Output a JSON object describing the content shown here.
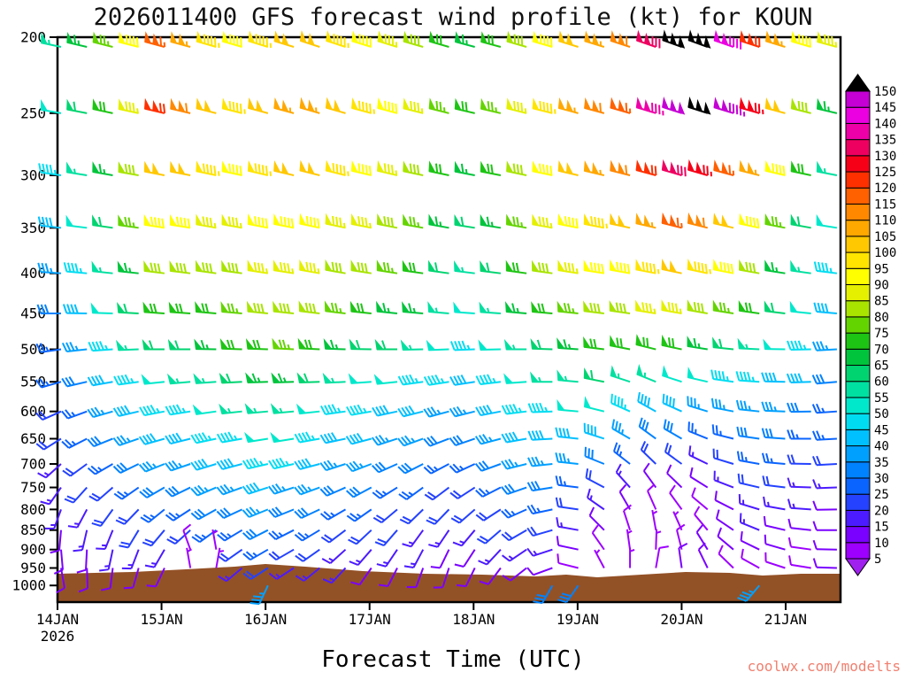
{
  "title": "2026011400 GFS forecast wind profile (kt) for KOUN",
  "xlabel": "Forecast Time (UTC)",
  "watermark": "coolwx.com/modelts",
  "axes": {
    "y_scale": "log-pressure",
    "ylim": [
      200,
      1050
    ],
    "pressure_ticks": [
      200,
      250,
      300,
      350,
      400,
      450,
      500,
      550,
      600,
      650,
      700,
      750,
      800,
      850,
      900,
      950,
      1000
    ],
    "time_ticks": [
      {
        "label": "14JAN",
        "day": 14
      },
      {
        "label": "15JAN",
        "day": 15
      },
      {
        "label": "16JAN",
        "day": 16
      },
      {
        "label": "17JAN",
        "day": 17
      },
      {
        "label": "18JAN",
        "day": 18
      },
      {
        "label": "19JAN",
        "day": 19
      },
      {
        "label": "20JAN",
        "day": 20
      },
      {
        "label": "21JAN",
        "day": 21
      }
    ],
    "year_label": "2026"
  },
  "colorbar": {
    "tick_labels": [
      5,
      10,
      15,
      20,
      25,
      30,
      35,
      40,
      45,
      50,
      55,
      60,
      65,
      70,
      75,
      80,
      85,
      90,
      95,
      100,
      105,
      110,
      115,
      120,
      125,
      130,
      135,
      140,
      145,
      150
    ],
    "colors": [
      "#9d00ff",
      "#7a00ff",
      "#4c1bff",
      "#2442ff",
      "#0a64ff",
      "#0082ff",
      "#00a0ff",
      "#00c0ff",
      "#00ddf2",
      "#00e8cc",
      "#00e0a0",
      "#00d470",
      "#00c43c",
      "#1ec414",
      "#64d400",
      "#a8e400",
      "#e4f000",
      "#ffff00",
      "#ffe400",
      "#ffc800",
      "#ffa800",
      "#ff8800",
      "#ff6000",
      "#ff3000",
      "#f60018",
      "#ee0060",
      "#ee00a8",
      "#ea00e0",
      "#c400d4"
    ],
    "under_color": "#a020f0",
    "over_color": "#000000"
  },
  "terrain": {
    "color": "#935126",
    "top_profile": [
      [
        65,
        648
      ],
      [
        150,
        646
      ],
      [
        210,
        643
      ],
      [
        265,
        640
      ],
      [
        300,
        637
      ],
      [
        345,
        640
      ],
      [
        410,
        645
      ],
      [
        480,
        648
      ],
      [
        545,
        649
      ],
      [
        605,
        651
      ],
      [
        640,
        649
      ],
      [
        675,
        652
      ],
      [
        725,
        649
      ],
      [
        775,
        646
      ],
      [
        825,
        647
      ],
      [
        862,
        650
      ],
      [
        905,
        648
      ],
      [
        950,
        648
      ]
    ]
  },
  "chart_data": {
    "type": "wind-barb-time-height",
    "model": "GFS",
    "station": "KOUN",
    "init_time": "2026011400",
    "units": "kt",
    "time_start_day": 14.0,
    "time_step_days": 0.25,
    "n_times": 31,
    "levels_hPa": [
      200,
      250,
      300,
      350,
      400,
      450,
      500,
      550,
      600,
      650,
      700,
      750,
      800,
      850,
      900,
      950,
      1000
    ],
    "speeds_kt": [
      [
        55,
        65,
        75,
        90,
        115,
        105,
        95,
        90,
        95,
        100,
        100,
        95,
        90,
        85,
        80,
        70,
        65,
        70,
        80,
        90,
        100,
        105,
        110,
        130,
        150,
        152,
        140,
        120,
        105,
        90,
        85
      ],
      [
        50,
        60,
        70,
        85,
        120,
        110,
        100,
        95,
        100,
        105,
        105,
        100,
        95,
        90,
        85,
        75,
        70,
        75,
        85,
        95,
        105,
        110,
        115,
        135,
        148,
        152,
        145,
        125,
        100,
        80,
        65
      ],
      [
        45,
        55,
        65,
        80,
        100,
        100,
        95,
        90,
        95,
        100,
        100,
        95,
        90,
        85,
        80,
        70,
        65,
        70,
        80,
        90,
        100,
        105,
        110,
        120,
        130,
        125,
        115,
        105,
        90,
        70,
        55
      ],
      [
        40,
        50,
        60,
        75,
        90,
        90,
        85,
        85,
        90,
        90,
        90,
        85,
        85,
        80,
        75,
        65,
        60,
        65,
        75,
        85,
        90,
        95,
        100,
        105,
        115,
        110,
        100,
        90,
        75,
        60,
        50
      ],
      [
        35,
        45,
        55,
        65,
        80,
        80,
        80,
        80,
        85,
        85,
        85,
        80,
        80,
        75,
        70,
        60,
        55,
        60,
        70,
        80,
        85,
        90,
        90,
        95,
        100,
        95,
        90,
        80,
        65,
        55,
        45
      ],
      [
        30,
        40,
        50,
        60,
        70,
        70,
        70,
        75,
        80,
        80,
        80,
        75,
        70,
        65,
        65,
        55,
        50,
        55,
        65,
        70,
        75,
        80,
        80,
        85,
        85,
        80,
        75,
        70,
        60,
        50,
        40
      ],
      [
        25,
        35,
        45,
        55,
        60,
        60,
        65,
        70,
        70,
        75,
        70,
        65,
        60,
        60,
        55,
        50,
        45,
        50,
        55,
        60,
        65,
        70,
        70,
        70,
        70,
        65,
        60,
        55,
        50,
        45,
        35
      ],
      [
        25,
        30,
        40,
        45,
        50,
        55,
        55,
        60,
        65,
        65,
        60,
        55,
        50,
        50,
        45,
        45,
        40,
        45,
        50,
        55,
        55,
        60,
        55,
        55,
        50,
        50,
        45,
        45,
        40,
        40,
        30
      ],
      [
        20,
        25,
        35,
        40,
        45,
        45,
        50,
        55,
        55,
        55,
        50,
        45,
        45,
        40,
        40,
        35,
        35,
        40,
        45,
        45,
        50,
        50,
        45,
        40,
        40,
        35,
        35,
        35,
        35,
        30,
        25
      ],
      [
        20,
        25,
        30,
        35,
        40,
        40,
        45,
        45,
        50,
        50,
        45,
        40,
        40,
        35,
        35,
        30,
        30,
        35,
        40,
        40,
        40,
        40,
        35,
        30,
        30,
        25,
        25,
        30,
        30,
        25,
        25
      ],
      [
        15,
        20,
        25,
        30,
        35,
        35,
        40,
        40,
        45,
        45,
        40,
        35,
        35,
        30,
        30,
        25,
        25,
        30,
        35,
        35,
        35,
        30,
        25,
        20,
        20,
        15,
        20,
        25,
        25,
        20,
        20
      ],
      [
        15,
        20,
        20,
        25,
        30,
        30,
        35,
        35,
        40,
        35,
        35,
        30,
        30,
        25,
        25,
        20,
        20,
        25,
        30,
        30,
        25,
        20,
        15,
        10,
        10,
        10,
        15,
        20,
        20,
        15,
        15
      ],
      [
        15,
        15,
        20,
        20,
        25,
        25,
        30,
        30,
        35,
        30,
        30,
        25,
        25,
        20,
        20,
        20,
        20,
        20,
        25,
        25,
        20,
        15,
        10,
        8,
        8,
        8,
        10,
        15,
        15,
        15,
        10
      ],
      [
        10,
        15,
        15,
        20,
        20,
        20,
        25,
        25,
        30,
        25,
        25,
        20,
        20,
        20,
        15,
        15,
        15,
        20,
        20,
        20,
        15,
        10,
        8,
        5,
        5,
        8,
        10,
        15,
        10,
        10,
        10
      ],
      [
        10,
        10,
        15,
        15,
        15,
        8,
        5,
        20,
        25,
        20,
        20,
        15,
        15,
        15,
        15,
        10,
        10,
        15,
        15,
        15,
        10,
        8,
        5,
        5,
        8,
        10,
        10,
        10,
        10,
        8,
        10
      ],
      [
        10,
        10,
        10,
        10,
        10,
        5,
        5,
        15,
        20,
        15,
        15,
        15,
        10,
        10,
        10,
        10,
        10,
        10,
        10,
        10,
        8,
        5,
        5,
        8,
        10,
        10,
        8,
        8,
        8,
        8,
        10
      ],
      [
        null,
        null,
        null,
        null,
        null,
        null,
        null,
        null,
        35,
        null,
        null,
        null,
        null,
        null,
        null,
        null,
        null,
        null,
        null,
        30,
        30,
        null,
        null,
        null,
        null,
        null,
        null,
        35,
        null,
        null,
        null
      ]
    ],
    "dirs_deg": [
      [
        282,
        283,
        284,
        284,
        285,
        285,
        286,
        286,
        287,
        287,
        288,
        288,
        287,
        287,
        286,
        286,
        285,
        285,
        286,
        286,
        287,
        287,
        288,
        289,
        290,
        290,
        289,
        288,
        287,
        286,
        285
      ],
      [
        280,
        281,
        282,
        282,
        283,
        283,
        284,
        284,
        285,
        285,
        286,
        286,
        285,
        285,
        284,
        284,
        283,
        283,
        284,
        284,
        285,
        285,
        286,
        287,
        288,
        288,
        287,
        286,
        285,
        284,
        283
      ],
      [
        278,
        279,
        280,
        280,
        281,
        281,
        282,
        282,
        283,
        283,
        284,
        284,
        283,
        283,
        282,
        282,
        281,
        281,
        282,
        282,
        283,
        283,
        284,
        285,
        286,
        286,
        285,
        284,
        283,
        282,
        281
      ],
      [
        276,
        277,
        278,
        278,
        279,
        279,
        280,
        280,
        281,
        281,
        282,
        282,
        281,
        281,
        280,
        280,
        279,
        279,
        280,
        280,
        281,
        281,
        282,
        283,
        284,
        284,
        283,
        282,
        281,
        280,
        279
      ],
      [
        274,
        275,
        276,
        276,
        277,
        277,
        278,
        278,
        279,
        279,
        280,
        280,
        279,
        279,
        278,
        278,
        277,
        277,
        278,
        278,
        279,
        279,
        280,
        281,
        282,
        282,
        281,
        280,
        279,
        278,
        277
      ],
      [
        270,
        271,
        272,
        273,
        274,
        274,
        275,
        275,
        276,
        276,
        277,
        277,
        276,
        276,
        275,
        275,
        274,
        274,
        275,
        275,
        276,
        277,
        278,
        279,
        280,
        280,
        279,
        278,
        277,
        276,
        275
      ],
      [
        262,
        264,
        266,
        268,
        270,
        270,
        271,
        272,
        272,
        273,
        273,
        272,
        271,
        270,
        269,
        268,
        268,
        269,
        270,
        272,
        274,
        277,
        281,
        284,
        282,
        279,
        276,
        273,
        271,
        269,
        267
      ],
      [
        254,
        257,
        260,
        262,
        264,
        265,
        266,
        267,
        268,
        268,
        268,
        267,
        266,
        264,
        262,
        261,
        261,
        263,
        266,
        270,
        275,
        281,
        288,
        292,
        288,
        283,
        278,
        274,
        271,
        268,
        265
      ],
      [
        246,
        250,
        254,
        257,
        259,
        261,
        262,
        264,
        265,
        265,
        264,
        262,
        260,
        258,
        256,
        255,
        256,
        259,
        263,
        268,
        275,
        284,
        294,
        299,
        294,
        287,
        281,
        276,
        272,
        269,
        266
      ],
      [
        238,
        243,
        248,
        251,
        254,
        256,
        258,
        260,
        261,
        261,
        260,
        258,
        255,
        252,
        250,
        249,
        251,
        255,
        260,
        267,
        276,
        288,
        300,
        306,
        300,
        292,
        284,
        278,
        274,
        270,
        267
      ],
      [
        228,
        234,
        240,
        244,
        248,
        251,
        253,
        255,
        257,
        257,
        255,
        252,
        249,
        246,
        243,
        242,
        245,
        250,
        256,
        264,
        276,
        292,
        308,
        314,
        306,
        296,
        287,
        280,
        275,
        271,
        267
      ],
      [
        215,
        222,
        229,
        235,
        240,
        244,
        247,
        250,
        252,
        252,
        250,
        246,
        242,
        238,
        234,
        233,
        237,
        243,
        251,
        261,
        277,
        298,
        318,
        324,
        314,
        302,
        291,
        283,
        277,
        272,
        268
      ],
      [
        200,
        208,
        216,
        224,
        231,
        237,
        241,
        245,
        248,
        248,
        245,
        240,
        235,
        230,
        226,
        224,
        229,
        237,
        246,
        258,
        278,
        305,
        330,
        336,
        324,
        310,
        297,
        287,
        280,
        274,
        269
      ],
      [
        185,
        193,
        202,
        211,
        220,
        228,
        234,
        239,
        243,
        243,
        239,
        233,
        227,
        221,
        216,
        214,
        220,
        229,
        240,
        254,
        280,
        315,
        342,
        350,
        336,
        320,
        304,
        292,
        283,
        276,
        270
      ],
      [
        175,
        183,
        192,
        201,
        210,
        340,
        350,
        235,
        240,
        240,
        235,
        228,
        221,
        214,
        208,
        206,
        213,
        223,
        236,
        252,
        282,
        325,
        352,
        2,
        346,
        328,
        310,
        296,
        286,
        278,
        271
      ],
      [
        170,
        178,
        187,
        196,
        205,
        350,
        10,
        230,
        237,
        237,
        231,
        223,
        215,
        207,
        200,
        198,
        206,
        217,
        232,
        250,
        284,
        332,
        0,
        10,
        352,
        334,
        314,
        299,
        288,
        279,
        272
      ],
      [
        0,
        0,
        0,
        0,
        0,
        0,
        0,
        0,
        205,
        0,
        0,
        0,
        0,
        0,
        0,
        0,
        0,
        0,
        0,
        210,
        215,
        0,
        0,
        0,
        0,
        0,
        0,
        220,
        0,
        0,
        0
      ]
    ]
  }
}
